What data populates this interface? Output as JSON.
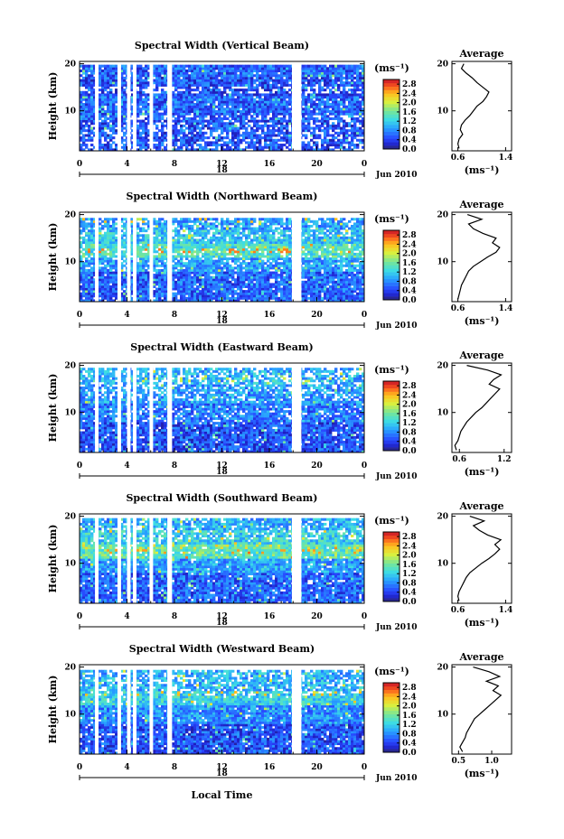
{
  "chart_data": [
    {
      "type": "heatmap",
      "title": "Spectral Width (Vertical Beam)",
      "ylabel": "Height (km)",
      "xlabel": "",
      "x_ticks": [
        "0",
        "4",
        "8",
        "12",
        "16",
        "20",
        "0"
      ],
      "y_ticks": [
        "20",
        "10"
      ],
      "date_day": "18",
      "date_month_year": "Jun 2010",
      "xlim": [
        0,
        24
      ],
      "ylim": [
        1.5,
        20.5
      ],
      "colorbar": {
        "unit": "(ms⁻¹)",
        "ticks": [
          "2.8",
          "2.4",
          "2.0",
          "1.6",
          "1.2",
          "0.8",
          "0.4",
          "0.0"
        ],
        "range": [
          0.0,
          3.0
        ]
      },
      "data_gaps_hours": [
        [
          1.3,
          1.6
        ],
        [
          3.2,
          3.5
        ],
        [
          4.0,
          4.3
        ],
        [
          4.5,
          4.8
        ],
        [
          5.9,
          6.2
        ],
        [
          7.4,
          7.8
        ],
        [
          17.9,
          18.7
        ]
      ],
      "structure": {
        "top_km": 19.8,
        "bands": [
          {
            "low": 1.5,
            "high": 8,
            "value": 0.5
          },
          {
            "low": 8,
            "high": 13,
            "value": 0.6
          },
          {
            "low": 13,
            "high": 17.5,
            "value": 0.5
          },
          {
            "low": 17.5,
            "high": 19.8,
            "value": 0.6
          }
        ],
        "sparse": [
          {
            "low": 1.5,
            "high": 9,
            "prob": 0.25
          },
          {
            "low": 13.5,
            "high": 15,
            "prob": 0.4
          }
        ],
        "spikes": []
      },
      "profile": {
        "title": "Average",
        "xlabel": "(ms⁻¹)",
        "x_ticks": [
          "0.6",
          "1.4"
        ],
        "y_ticks": [
          "20",
          "10"
        ],
        "xlim": [
          0.5,
          1.5
        ],
        "heights_km": [
          2,
          3,
          4,
          5,
          6,
          7,
          8,
          9,
          10,
          11,
          12,
          13,
          14,
          15,
          16,
          17,
          18,
          19,
          20
        ],
        "values": [
          0.62,
          0.6,
          0.62,
          0.68,
          0.64,
          0.66,
          0.72,
          0.8,
          0.86,
          0.92,
          1.02,
          1.08,
          1.12,
          1.02,
          0.92,
          0.84,
          0.74,
          0.66,
          0.7
        ]
      }
    },
    {
      "type": "heatmap",
      "title": "Spectral Width (Northward Beam)",
      "ylabel": "Height (km)",
      "xlabel": "",
      "x_ticks": [
        "0",
        "4",
        "8",
        "12",
        "16",
        "20",
        "0"
      ],
      "y_ticks": [
        "20",
        "10"
      ],
      "date_day": "18",
      "date_month_year": "Jun 2010",
      "xlim": [
        0,
        24
      ],
      "ylim": [
        1.5,
        20.5
      ],
      "colorbar": {
        "unit": "(ms⁻¹)",
        "ticks": [
          "2.8",
          "2.4",
          "2.0",
          "1.6",
          "1.2",
          "0.8",
          "0.4",
          "0.0"
        ],
        "range": [
          0.0,
          3.0
        ]
      },
      "data_gaps_hours": [
        [
          1.3,
          1.6
        ],
        [
          3.2,
          3.5
        ],
        [
          4.0,
          4.3
        ],
        [
          4.5,
          4.8
        ],
        [
          5.9,
          6.2
        ],
        [
          7.4,
          7.8
        ],
        [
          17.9,
          18.7
        ]
      ],
      "structure": {
        "top_km": 19.3,
        "bands": [
          {
            "low": 1.5,
            "high": 8,
            "value": 0.6
          },
          {
            "low": 8,
            "high": 11,
            "value": 0.9
          },
          {
            "low": 11,
            "high": 14,
            "value": 1.4
          },
          {
            "low": 14,
            "high": 17,
            "value": 1.1
          },
          {
            "low": 17,
            "high": 19.3,
            "value": 0.9
          }
        ],
        "sparse": [
          {
            "low": 15,
            "high": 19.3,
            "prob": 0.2
          },
          {
            "low": 8,
            "high": 13,
            "prob": 0.15
          }
        ],
        "spikes": [
          {
            "h": 12.5,
            "value": 2.6
          },
          {
            "h": 18.8,
            "value": 2.4
          }
        ]
      },
      "profile": {
        "title": "Average",
        "xlabel": "(ms⁻¹)",
        "x_ticks": [
          "0.6",
          "1.4"
        ],
        "y_ticks": [
          "20",
          "10"
        ],
        "xlim": [
          0.5,
          1.5
        ],
        "heights_km": [
          2,
          3,
          4,
          5,
          6,
          7,
          8,
          9,
          10,
          11,
          12,
          13,
          14,
          15,
          16,
          17,
          18,
          19,
          20
        ],
        "values": [
          0.6,
          0.62,
          0.64,
          0.66,
          0.7,
          0.74,
          0.78,
          0.86,
          0.98,
          1.1,
          1.24,
          1.3,
          1.18,
          1.24,
          1.02,
          0.86,
          0.78,
          1.0,
          0.76
        ]
      }
    },
    {
      "type": "heatmap",
      "title": "Spectral Width (Eastward Beam)",
      "ylabel": "Height (km)",
      "xlabel": "",
      "x_ticks": [
        "0",
        "4",
        "8",
        "12",
        "16",
        "20",
        "0"
      ],
      "y_ticks": [
        "20",
        "10"
      ],
      "date_day": "18",
      "date_month_year": "Jun 2010",
      "xlim": [
        0,
        24
      ],
      "ylim": [
        1.5,
        20.5
      ],
      "colorbar": {
        "unit": "(ms⁻¹)",
        "ticks": [
          "2.8",
          "2.4",
          "2.0",
          "1.6",
          "1.2",
          "0.8",
          "0.4",
          "0.0"
        ],
        "range": [
          0.0,
          3.0
        ]
      },
      "data_gaps_hours": [
        [
          1.3,
          1.6
        ],
        [
          3.2,
          3.5
        ],
        [
          4.0,
          4.3
        ],
        [
          4.5,
          4.8
        ],
        [
          5.9,
          6.2
        ],
        [
          7.4,
          7.8
        ],
        [
          17.9,
          18.7
        ]
      ],
      "structure": {
        "top_km": 19.5,
        "bands": [
          {
            "low": 1.5,
            "high": 8,
            "value": 0.5
          },
          {
            "low": 8,
            "high": 12,
            "value": 0.7
          },
          {
            "low": 12,
            "high": 16,
            "value": 0.9
          },
          {
            "low": 16,
            "high": 19.5,
            "value": 1.0
          }
        ],
        "sparse": [
          {
            "low": 12.5,
            "high": 19.5,
            "prob": 0.3
          },
          {
            "low": 8,
            "high": 11,
            "prob": 0.15
          }
        ],
        "spikes": [
          {
            "h": 17.2,
            "value": 2.0
          }
        ]
      },
      "profile": {
        "title": "Average",
        "xlabel": "(ms⁻¹)",
        "x_ticks": [
          "0.6",
          "1.2"
        ],
        "y_ticks": [
          "20",
          "10"
        ],
        "xlim": [
          0.5,
          1.3
        ],
        "heights_km": [
          2,
          3,
          4,
          5,
          6,
          7,
          8,
          9,
          10,
          11,
          12,
          13,
          14,
          15,
          16,
          17,
          18,
          19,
          20
        ],
        "values": [
          0.56,
          0.54,
          0.58,
          0.6,
          0.62,
          0.66,
          0.7,
          0.76,
          0.82,
          0.9,
          0.96,
          1.02,
          1.08,
          1.14,
          1.0,
          1.06,
          1.16,
          0.98,
          0.7
        ]
      }
    },
    {
      "type": "heatmap",
      "title": "Spectral Width (Southward Beam)",
      "ylabel": "Height (km)",
      "xlabel": "",
      "x_ticks": [
        "0",
        "4",
        "8",
        "12",
        "16",
        "20",
        "0"
      ],
      "y_ticks": [
        "20",
        "10"
      ],
      "date_day": "18",
      "date_month_year": "Jun 2010",
      "xlim": [
        0,
        24
      ],
      "ylim": [
        1.5,
        20.5
      ],
      "colorbar": {
        "unit": "(ms⁻¹)",
        "ticks": [
          "2.8",
          "2.4",
          "2.0",
          "1.6",
          "1.2",
          "0.8",
          "0.4",
          "0.0"
        ],
        "range": [
          0.0,
          3.0
        ]
      },
      "data_gaps_hours": [
        [
          1.3,
          1.6
        ],
        [
          3.2,
          3.5
        ],
        [
          4.0,
          4.3
        ],
        [
          4.5,
          4.8
        ],
        [
          5.9,
          6.2
        ],
        [
          7.4,
          7.8
        ],
        [
          17.9,
          18.7
        ]
      ],
      "structure": {
        "top_km": 19.6,
        "bands": [
          {
            "low": 1.5,
            "high": 8,
            "value": 0.6
          },
          {
            "low": 8,
            "high": 11,
            "value": 0.9
          },
          {
            "low": 11,
            "high": 14,
            "value": 1.5
          },
          {
            "low": 14,
            "high": 17,
            "value": 1.2
          },
          {
            "low": 17,
            "high": 19.6,
            "value": 1.0
          }
        ],
        "sparse": [
          {
            "low": 15,
            "high": 19.6,
            "prob": 0.2
          }
        ],
        "spikes": [
          {
            "h": 12.8,
            "value": 2.5
          },
          {
            "h": 13.4,
            "value": 2.2
          }
        ]
      },
      "profile": {
        "title": "Average",
        "xlabel": "(ms⁻¹)",
        "x_ticks": [
          "0.6",
          "1.4"
        ],
        "y_ticks": [
          "20",
          "10"
        ],
        "xlim": [
          0.5,
          1.5
        ],
        "heights_km": [
          2,
          3,
          4,
          5,
          6,
          7,
          8,
          9,
          10,
          11,
          12,
          13,
          14,
          15,
          16,
          17,
          18,
          19,
          20
        ],
        "values": [
          0.62,
          0.6,
          0.62,
          0.66,
          0.7,
          0.74,
          0.8,
          0.9,
          1.0,
          1.12,
          1.22,
          1.3,
          1.22,
          1.32,
          1.1,
          0.96,
          0.86,
          1.04,
          0.8
        ]
      }
    },
    {
      "type": "heatmap",
      "title": "Spectral Width (Westward Beam)",
      "ylabel": "Height (km)",
      "xlabel": "Local Time",
      "x_ticks": [
        "0",
        "4",
        "8",
        "12",
        "16",
        "20",
        "0"
      ],
      "y_ticks": [
        "20",
        "10"
      ],
      "date_day": "18",
      "date_month_year": "Jun 2010",
      "xlim": [
        0,
        24
      ],
      "ylim": [
        1.5,
        20.5
      ],
      "colorbar": {
        "unit": "(ms⁻¹)",
        "ticks": [
          "2.8",
          "2.4",
          "2.0",
          "1.6",
          "1.2",
          "0.8",
          "0.4",
          "0.0"
        ],
        "range": [
          0.0,
          3.0
        ]
      },
      "data_gaps_hours": [
        [
          1.3,
          1.6
        ],
        [
          3.2,
          3.5
        ],
        [
          4.0,
          4.3
        ],
        [
          4.5,
          4.8
        ],
        [
          5.9,
          6.2
        ],
        [
          7.4,
          7.8
        ],
        [
          17.9,
          18.7
        ]
      ],
      "structure": {
        "top_km": 19.4,
        "bands": [
          {
            "low": 1.5,
            "high": 8,
            "value": 0.5
          },
          {
            "low": 8,
            "high": 12,
            "value": 0.8
          },
          {
            "low": 12,
            "high": 15,
            "value": 1.2
          },
          {
            "low": 15,
            "high": 19.4,
            "value": 1.0
          }
        ],
        "sparse": [
          {
            "low": 14,
            "high": 19.4,
            "prob": 0.25
          }
        ],
        "spikes": [
          {
            "h": 14.2,
            "value": 2.4
          }
        ]
      },
      "profile": {
        "title": "Average",
        "xlabel": "(ms⁻¹)",
        "x_ticks": [
          "0.5",
          "1.0"
        ],
        "y_ticks": [
          "20",
          "10"
        ],
        "xlim": [
          0.4,
          1.3
        ],
        "heights_km": [
          2,
          3,
          4,
          5,
          6,
          7,
          8,
          9,
          10,
          11,
          12,
          13,
          14,
          15,
          16,
          17,
          18,
          19,
          20
        ],
        "values": [
          0.56,
          0.52,
          0.56,
          0.6,
          0.62,
          0.66,
          0.7,
          0.74,
          0.82,
          0.9,
          0.98,
          1.06,
          1.14,
          1.02,
          1.1,
          0.92,
          1.12,
          0.96,
          0.72
        ]
      }
    }
  ]
}
